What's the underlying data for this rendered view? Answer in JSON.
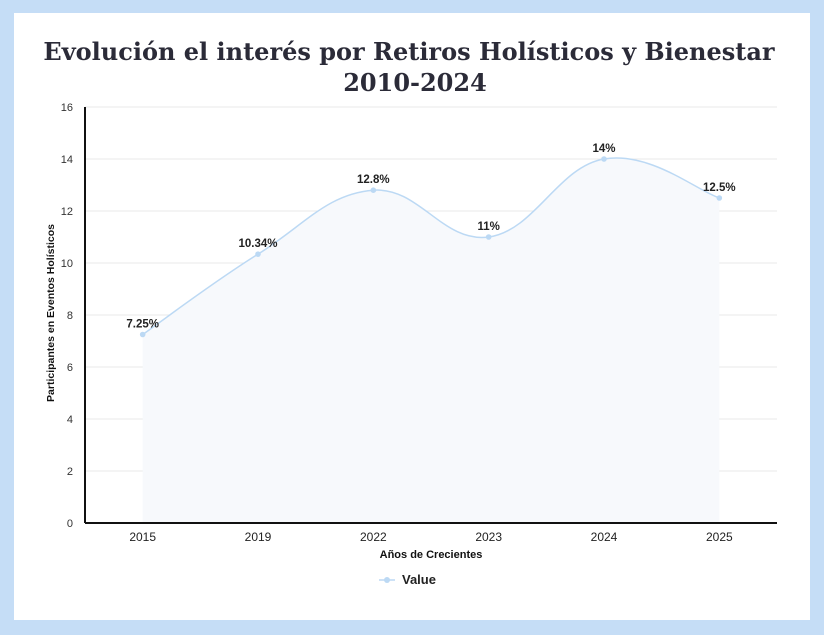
{
  "title": {
    "line1": "Evolución el interés por Retiros Holísticos y Bienestar",
    "line2": "2010-2024"
  },
  "legend": {
    "label": "Value"
  },
  "colors": {
    "line": "#bcd9f4",
    "fill": "#f7f9fc",
    "axis": "#111111",
    "grid": "#e8e8e8"
  },
  "chart_data": {
    "type": "area",
    "title": "Evolución el interés por Retiros Holísticos y Bienestar 2010-2024",
    "xlabel": "Años de Crecientes",
    "ylabel": "Participantes en Eventos Holísticos",
    "ylim": [
      0,
      16
    ],
    "yticks": [
      0,
      2,
      4,
      6,
      8,
      10,
      12,
      14,
      16
    ],
    "grid": true,
    "legend_position": "bottom",
    "categories": [
      "2015",
      "2019",
      "2022",
      "2023",
      "2024",
      "2025"
    ],
    "series": [
      {
        "name": "Value",
        "values": [
          7.25,
          10.34,
          12.8,
          11,
          14,
          12.5
        ],
        "labels": [
          "7.25%",
          "10.34%",
          "12.8%",
          "11%",
          "14%",
          "12.5%"
        ]
      }
    ]
  }
}
